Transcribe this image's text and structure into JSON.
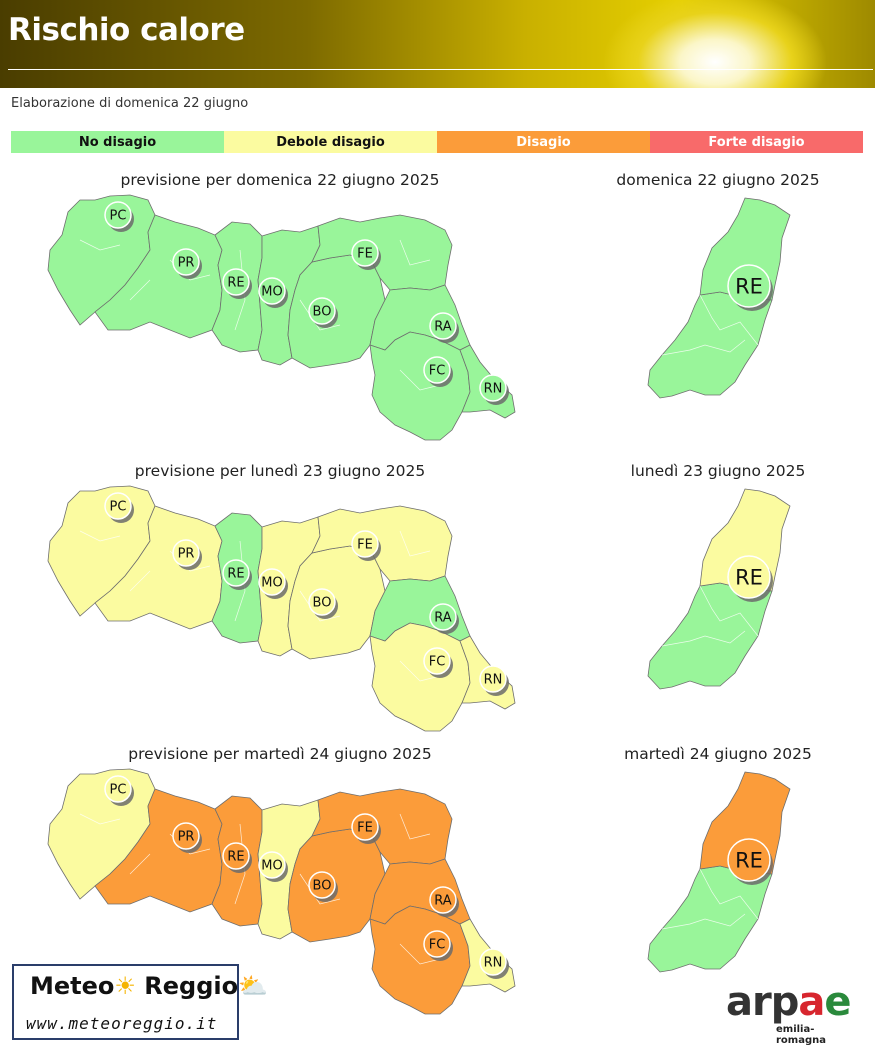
{
  "header": {
    "title": "Rischio calore"
  },
  "subtitle": "Elaborazione di domenica 22 giugno",
  "colors": {
    "no_disagio": "#99f59a",
    "debole": "#fbfba0",
    "disagio": "#fb9c3a",
    "forte": "#f86a6a"
  },
  "legend": [
    {
      "label": "No disagio",
      "color": "#99f59a",
      "text_color": "#111111"
    },
    {
      "label": "Debole disagio",
      "color": "#fbfba0",
      "text_color": "#111111"
    },
    {
      "label": "Disagio",
      "color": "#fb9c3a",
      "text_color": "#ffffff"
    },
    {
      "label": "Forte disagio",
      "color": "#f86a6a",
      "text_color": "#ffffff"
    }
  ],
  "forecasts": [
    {
      "region_title": "previsione per domenica 22 giugno 2025",
      "province_title": "domenica 22 giugno 2025",
      "province": {
        "code": "RE",
        "north_level": "no_disagio",
        "south_level": "no_disagio"
      },
      "provinces": [
        {
          "code": "PC",
          "level": "no_disagio"
        },
        {
          "code": "PR",
          "level": "no_disagio"
        },
        {
          "code": "RE",
          "level": "no_disagio"
        },
        {
          "code": "MO",
          "level": "no_disagio"
        },
        {
          "code": "BO",
          "level": "no_disagio"
        },
        {
          "code": "FE",
          "level": "no_disagio"
        },
        {
          "code": "RA",
          "level": "no_disagio"
        },
        {
          "code": "FC",
          "level": "no_disagio"
        },
        {
          "code": "RN",
          "level": "no_disagio"
        }
      ]
    },
    {
      "region_title": "previsione per lunedì 23 giugno 2025",
      "province_title": "lunedì 23 giugno 2025",
      "province": {
        "code": "RE",
        "north_level": "debole",
        "south_level": "no_disagio"
      },
      "provinces": [
        {
          "code": "PC",
          "level": "debole"
        },
        {
          "code": "PR",
          "level": "debole"
        },
        {
          "code": "RE",
          "level": "no_disagio"
        },
        {
          "code": "MO",
          "level": "debole"
        },
        {
          "code": "BO",
          "level": "debole"
        },
        {
          "code": "FE",
          "level": "debole"
        },
        {
          "code": "RA",
          "level": "no_disagio"
        },
        {
          "code": "FC",
          "level": "debole"
        },
        {
          "code": "RN",
          "level": "debole"
        }
      ]
    },
    {
      "region_title": "previsione per martedì 24 giugno 2025",
      "province_title": "martedì 24 giugno 2025",
      "province": {
        "code": "RE",
        "north_level": "disagio",
        "south_level": "no_disagio"
      },
      "provinces": [
        {
          "code": "PC",
          "level": "debole"
        },
        {
          "code": "PR",
          "level": "disagio"
        },
        {
          "code": "RE",
          "level": "disagio"
        },
        {
          "code": "MO",
          "level": "debole"
        },
        {
          "code": "BO",
          "level": "disagio"
        },
        {
          "code": "FE",
          "level": "disagio"
        },
        {
          "code": "RA",
          "level": "disagio"
        },
        {
          "code": "FC",
          "level": "disagio"
        },
        {
          "code": "RN",
          "level": "debole"
        }
      ]
    }
  ],
  "logos": {
    "meteo_reggio": {
      "brand": "Meteo Reggio",
      "url": "www.meteoreggio.it"
    },
    "arpae": {
      "brand": "arpae",
      "sub": "emilia-romagna"
    }
  }
}
